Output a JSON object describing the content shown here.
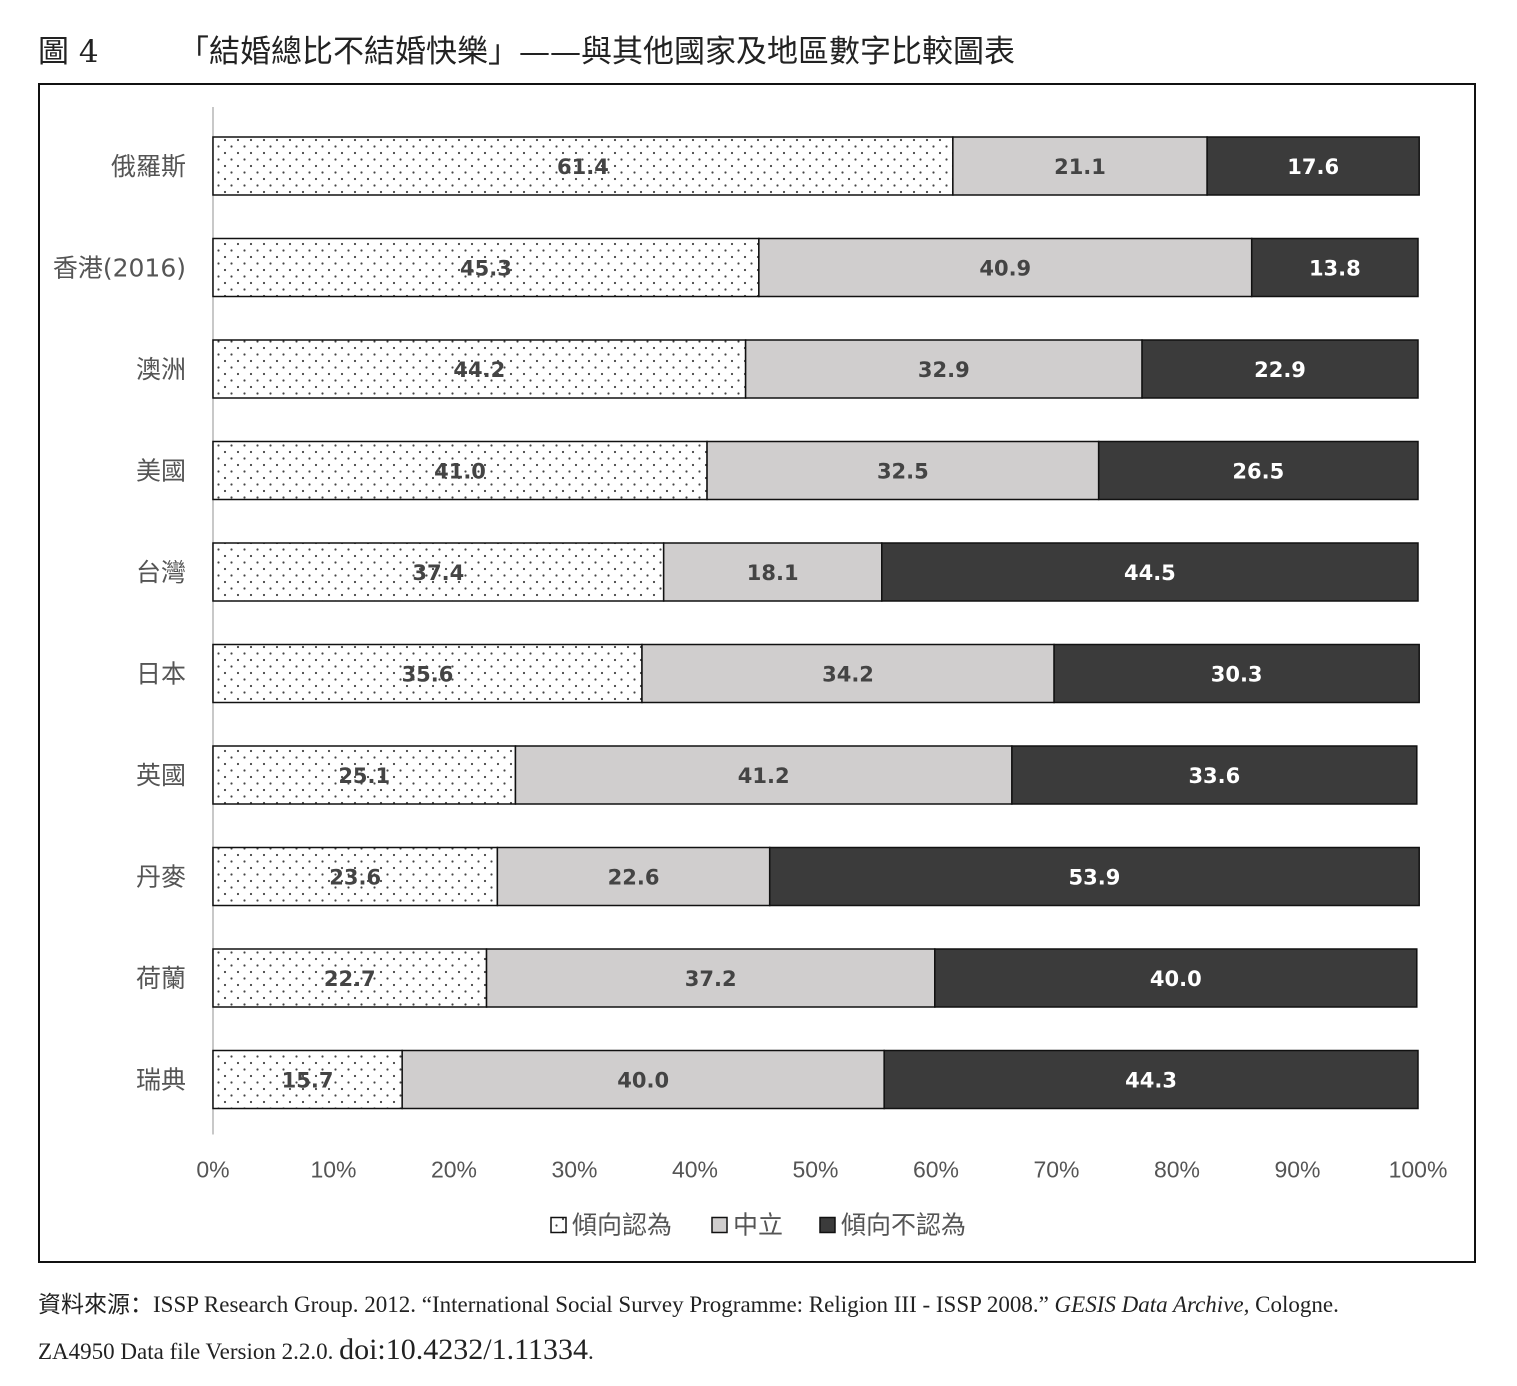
{
  "figure": {
    "label": "圖 4",
    "title": "「結婚總比不結婚快樂」——與其他國家及地區數字比較圖表"
  },
  "source": {
    "prefix": "資料來源：ISSP Research Group. 2012. “International Social Survey Programme: Religion III - ISSP 2008.” ",
    "journal": "GESIS Data Archive,",
    "suffix": " Cologne.",
    "line2": "ZA4950 Data file Version 2.2.0. ",
    "doi": "doi:10.4232/1.11334",
    "end": "."
  },
  "chart_data": {
    "type": "bar",
    "orientation": "horizontal",
    "stacked": "percent",
    "categories": [
      "俄羅斯",
      "香港(2016)",
      "澳洲",
      "美國",
      "台灣",
      "日本",
      "英國",
      "丹麥",
      "荷蘭",
      "瑞典"
    ],
    "series": [
      {
        "name": "傾向認為",
        "values": [
          61.4,
          45.3,
          44.2,
          41.0,
          37.4,
          35.6,
          25.1,
          23.6,
          22.7,
          15.7
        ],
        "color": "#ffffff",
        "pattern": "dots"
      },
      {
        "name": "中立",
        "values": [
          21.1,
          40.9,
          32.9,
          32.5,
          18.1,
          34.2,
          41.2,
          22.6,
          37.2,
          40.0
        ],
        "color": "#d0cece"
      },
      {
        "name": "傾向不認為",
        "values": [
          17.6,
          13.8,
          22.9,
          26.5,
          44.5,
          30.3,
          33.6,
          53.9,
          40.0,
          44.3
        ],
        "color": "#3b3b3b"
      }
    ],
    "xlim": [
      0,
      100
    ],
    "xticks": [
      "0%",
      "10%",
      "20%",
      "30%",
      "40%",
      "50%",
      "60%",
      "70%",
      "80%",
      "90%",
      "100%"
    ],
    "legend_position": "bottom",
    "grid": false
  }
}
